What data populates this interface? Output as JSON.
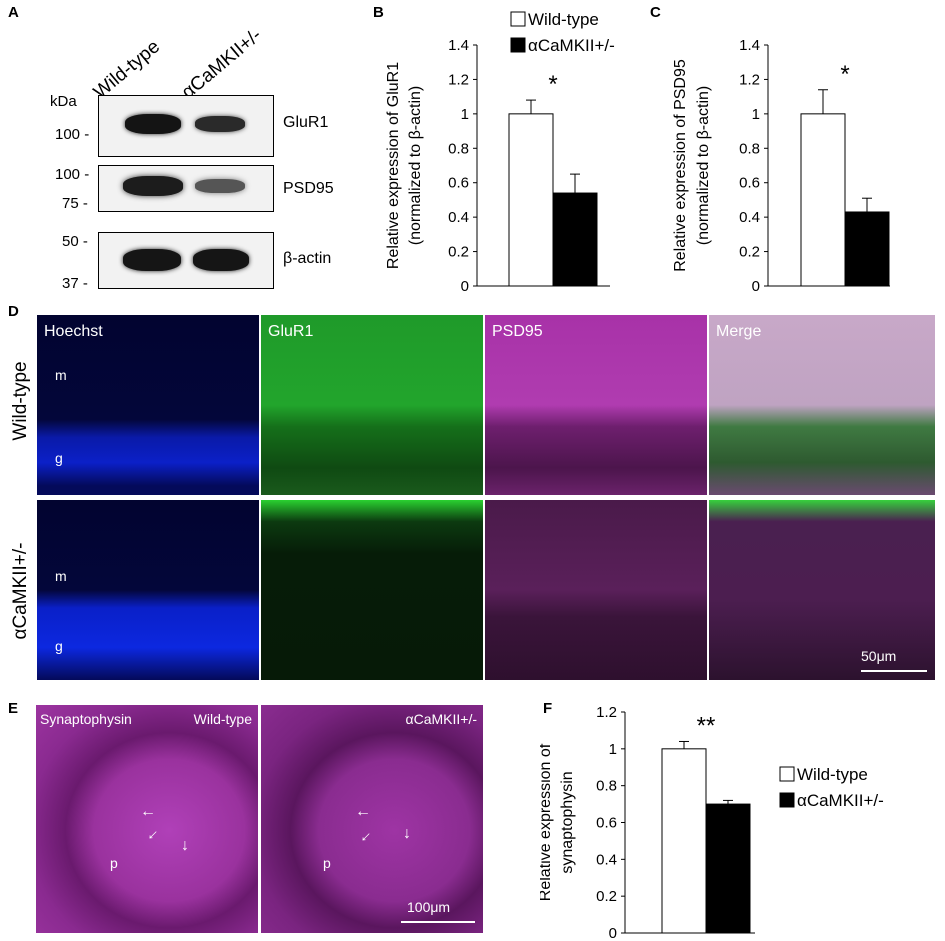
{
  "panels": {
    "A": "A",
    "B": "B",
    "C": "C",
    "D": "D",
    "E": "E",
    "F": "F"
  },
  "blot": {
    "lanes": [
      "Wild-type",
      "αCaMKII+/-"
    ],
    "kda_label": "kDa",
    "rows": [
      {
        "label": "GluR1",
        "ticks": [
          "100 -"
        ]
      },
      {
        "label": "PSD95",
        "ticks": [
          "100 -",
          "75 -"
        ]
      },
      {
        "label": "β-actin",
        "ticks": [
          "50 -",
          "37 -"
        ]
      }
    ]
  },
  "legend": {
    "wt": "Wild-type",
    "mut": "αCaMKII+/-"
  },
  "chart_data": [
    {
      "panel": "B",
      "type": "bar",
      "categories": [
        "Wild-type",
        "αCaMKII+/-"
      ],
      "values": [
        1.0,
        0.54
      ],
      "errors": [
        0.08,
        0.11
      ],
      "colors": [
        "#ffffff",
        "#000000"
      ],
      "ylabel": "Relative expression of GluR1",
      "ylabel2": "(normalized to β-actin)",
      "ylim": [
        0,
        1.4
      ],
      "yticks": [
        "0",
        "0.2",
        "0.4",
        "0.6",
        "0.8",
        "1",
        "1.2",
        "1.4"
      ],
      "significance": "*",
      "legend": "top-right"
    },
    {
      "panel": "C",
      "type": "bar",
      "categories": [
        "Wild-type",
        "αCaMKII+/-"
      ],
      "values": [
        1.0,
        0.43
      ],
      "errors": [
        0.14,
        0.08
      ],
      "colors": [
        "#ffffff",
        "#000000"
      ],
      "ylabel": "Relative expression of PSD95",
      "ylabel2": "(normalized to β-actin)",
      "ylim": [
        0,
        1.4
      ],
      "yticks": [
        "0",
        "0.2",
        "0.4",
        "0.6",
        "0.8",
        "1",
        "1.2",
        "1.4"
      ],
      "significance": "*"
    },
    {
      "panel": "F",
      "type": "bar",
      "categories": [
        "Wild-type",
        "αCaMKII+/-"
      ],
      "values": [
        1.0,
        0.7
      ],
      "errors": [
        0.04,
        0.02
      ],
      "colors": [
        "#ffffff",
        "#000000"
      ],
      "ylabel": "Relative expression of",
      "ylabel2": "synaptophysin",
      "ylim": [
        0,
        1.2
      ],
      "yticks": [
        "0",
        "0.2",
        "0.4",
        "0.6",
        "0.8",
        "1",
        "1.2"
      ],
      "significance": "**",
      "legend": "right"
    }
  ],
  "microscopy_d": {
    "columns": [
      "Hoechst",
      "GluR1",
      "PSD95",
      "Merge"
    ],
    "rows": [
      "Wild-type",
      "αCaMKII+/-"
    ],
    "layer_m": "m",
    "layer_g": "g",
    "scale": "50μm"
  },
  "microscopy_e": {
    "stain": "Synaptophysin",
    "left": "Wild-type",
    "right": "αCaMKII+/-",
    "layer_p": "p",
    "scale": "100μm"
  }
}
